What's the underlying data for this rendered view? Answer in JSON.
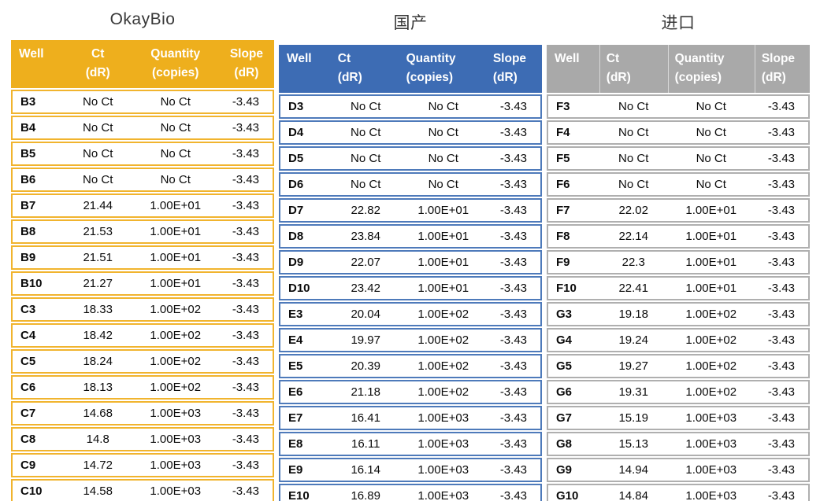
{
  "tables": [
    {
      "title": "OkayBio",
      "accent": "#EEAF1D",
      "border": "#F1B42E",
      "columns": [
        {
          "label": "Well",
          "sub": ""
        },
        {
          "label": "Ct",
          "sub": "(dR)"
        },
        {
          "label": "Quantity",
          "sub": "(copies)"
        },
        {
          "label": "Slope",
          "sub": "(dR)"
        }
      ],
      "rows": [
        [
          "B3",
          "No Ct",
          "No Ct",
          "-3.43"
        ],
        [
          "B4",
          "No Ct",
          "No Ct",
          "-3.43"
        ],
        [
          "B5",
          "No Ct",
          "No Ct",
          "-3.43"
        ],
        [
          "B6",
          "No Ct",
          "No Ct",
          "-3.43"
        ],
        [
          "B7",
          "21.44",
          "1.00E+01",
          "-3.43"
        ],
        [
          "B8",
          "21.53",
          "1.00E+01",
          "-3.43"
        ],
        [
          "B9",
          "21.51",
          "1.00E+01",
          "-3.43"
        ],
        [
          "B10",
          "21.27",
          "1.00E+01",
          "-3.43"
        ],
        [
          "C3",
          "18.33",
          "1.00E+02",
          "-3.43"
        ],
        [
          "C4",
          "18.42",
          "1.00E+02",
          "-3.43"
        ],
        [
          "C5",
          "18.24",
          "1.00E+02",
          "-3.43"
        ],
        [
          "C6",
          "18.13",
          "1.00E+02",
          "-3.43"
        ],
        [
          "C7",
          "14.68",
          "1.00E+03",
          "-3.43"
        ],
        [
          "C8",
          "14.8",
          "1.00E+03",
          "-3.43"
        ],
        [
          "C9",
          "14.72",
          "1.00E+03",
          "-3.43"
        ],
        [
          "C10",
          "14.58",
          "1.00E+03",
          "-3.43"
        ]
      ]
    },
    {
      "title": "国产",
      "accent": "#3D6CB4",
      "border": "#4E7ABA",
      "columns": [
        {
          "label": "Well",
          "sub": ""
        },
        {
          "label": "Ct",
          "sub": "(dR)"
        },
        {
          "label": "Quantity",
          "sub": "(copies)"
        },
        {
          "label": "Slope",
          "sub": "(dR)"
        }
      ],
      "rows": [
        [
          "D3",
          "No Ct",
          "No Ct",
          "-3.43"
        ],
        [
          "D4",
          "No Ct",
          "No Ct",
          "-3.43"
        ],
        [
          "D5",
          "No Ct",
          "No Ct",
          "-3.43"
        ],
        [
          "D6",
          "No Ct",
          "No Ct",
          "-3.43"
        ],
        [
          "D7",
          "22.82",
          "1.00E+01",
          "-3.43"
        ],
        [
          "D8",
          "23.84",
          "1.00E+01",
          "-3.43"
        ],
        [
          "D9",
          "22.07",
          "1.00E+01",
          "-3.43"
        ],
        [
          "D10",
          "23.42",
          "1.00E+01",
          "-3.43"
        ],
        [
          "E3",
          "20.04",
          "1.00E+02",
          "-3.43"
        ],
        [
          "E4",
          "19.97",
          "1.00E+02",
          "-3.43"
        ],
        [
          "E5",
          "20.39",
          "1.00E+02",
          "-3.43"
        ],
        [
          "E6",
          "21.18",
          "1.00E+02",
          "-3.43"
        ],
        [
          "E7",
          "16.41",
          "1.00E+03",
          "-3.43"
        ],
        [
          "E8",
          "16.11",
          "1.00E+03",
          "-3.43"
        ],
        [
          "E9",
          "16.14",
          "1.00E+03",
          "-3.43"
        ],
        [
          "E10",
          "16.89",
          "1.00E+03",
          "-3.43"
        ]
      ]
    },
    {
      "title": "进口",
      "accent": "#A9A9A9",
      "border": "#AFAFAF",
      "columns": [
        {
          "label": "Well",
          "sub": ""
        },
        {
          "label": "Ct",
          "sub": "(dR)"
        },
        {
          "label": "Quantity",
          "sub": "(copies)"
        },
        {
          "label": "Slope",
          "sub": "(dR)"
        }
      ],
      "rows": [
        [
          "F3",
          "No Ct",
          "No Ct",
          "-3.43"
        ],
        [
          "F4",
          "No Ct",
          "No Ct",
          "-3.43"
        ],
        [
          "F5",
          "No Ct",
          "No Ct",
          "-3.43"
        ],
        [
          "F6",
          "No Ct",
          "No Ct",
          "-3.43"
        ],
        [
          "F7",
          "22.02",
          "1.00E+01",
          "-3.43"
        ],
        [
          "F8",
          "22.14",
          "1.00E+01",
          "-3.43"
        ],
        [
          "F9",
          "22.3",
          "1.00E+01",
          "-3.43"
        ],
        [
          "F10",
          "22.41",
          "1.00E+01",
          "-3.43"
        ],
        [
          "G3",
          "19.18",
          "1.00E+02",
          "-3.43"
        ],
        [
          "G4",
          "19.24",
          "1.00E+02",
          "-3.43"
        ],
        [
          "G5",
          "19.27",
          "1.00E+02",
          "-3.43"
        ],
        [
          "G6",
          "19.31",
          "1.00E+02",
          "-3.43"
        ],
        [
          "G7",
          "15.19",
          "1.00E+03",
          "-3.43"
        ],
        [
          "G8",
          "15.13",
          "1.00E+03",
          "-3.43"
        ],
        [
          "G9",
          "14.94",
          "1.00E+03",
          "-3.43"
        ],
        [
          "G10",
          "14.84",
          "1.00E+03",
          "-3.43"
        ]
      ]
    }
  ]
}
